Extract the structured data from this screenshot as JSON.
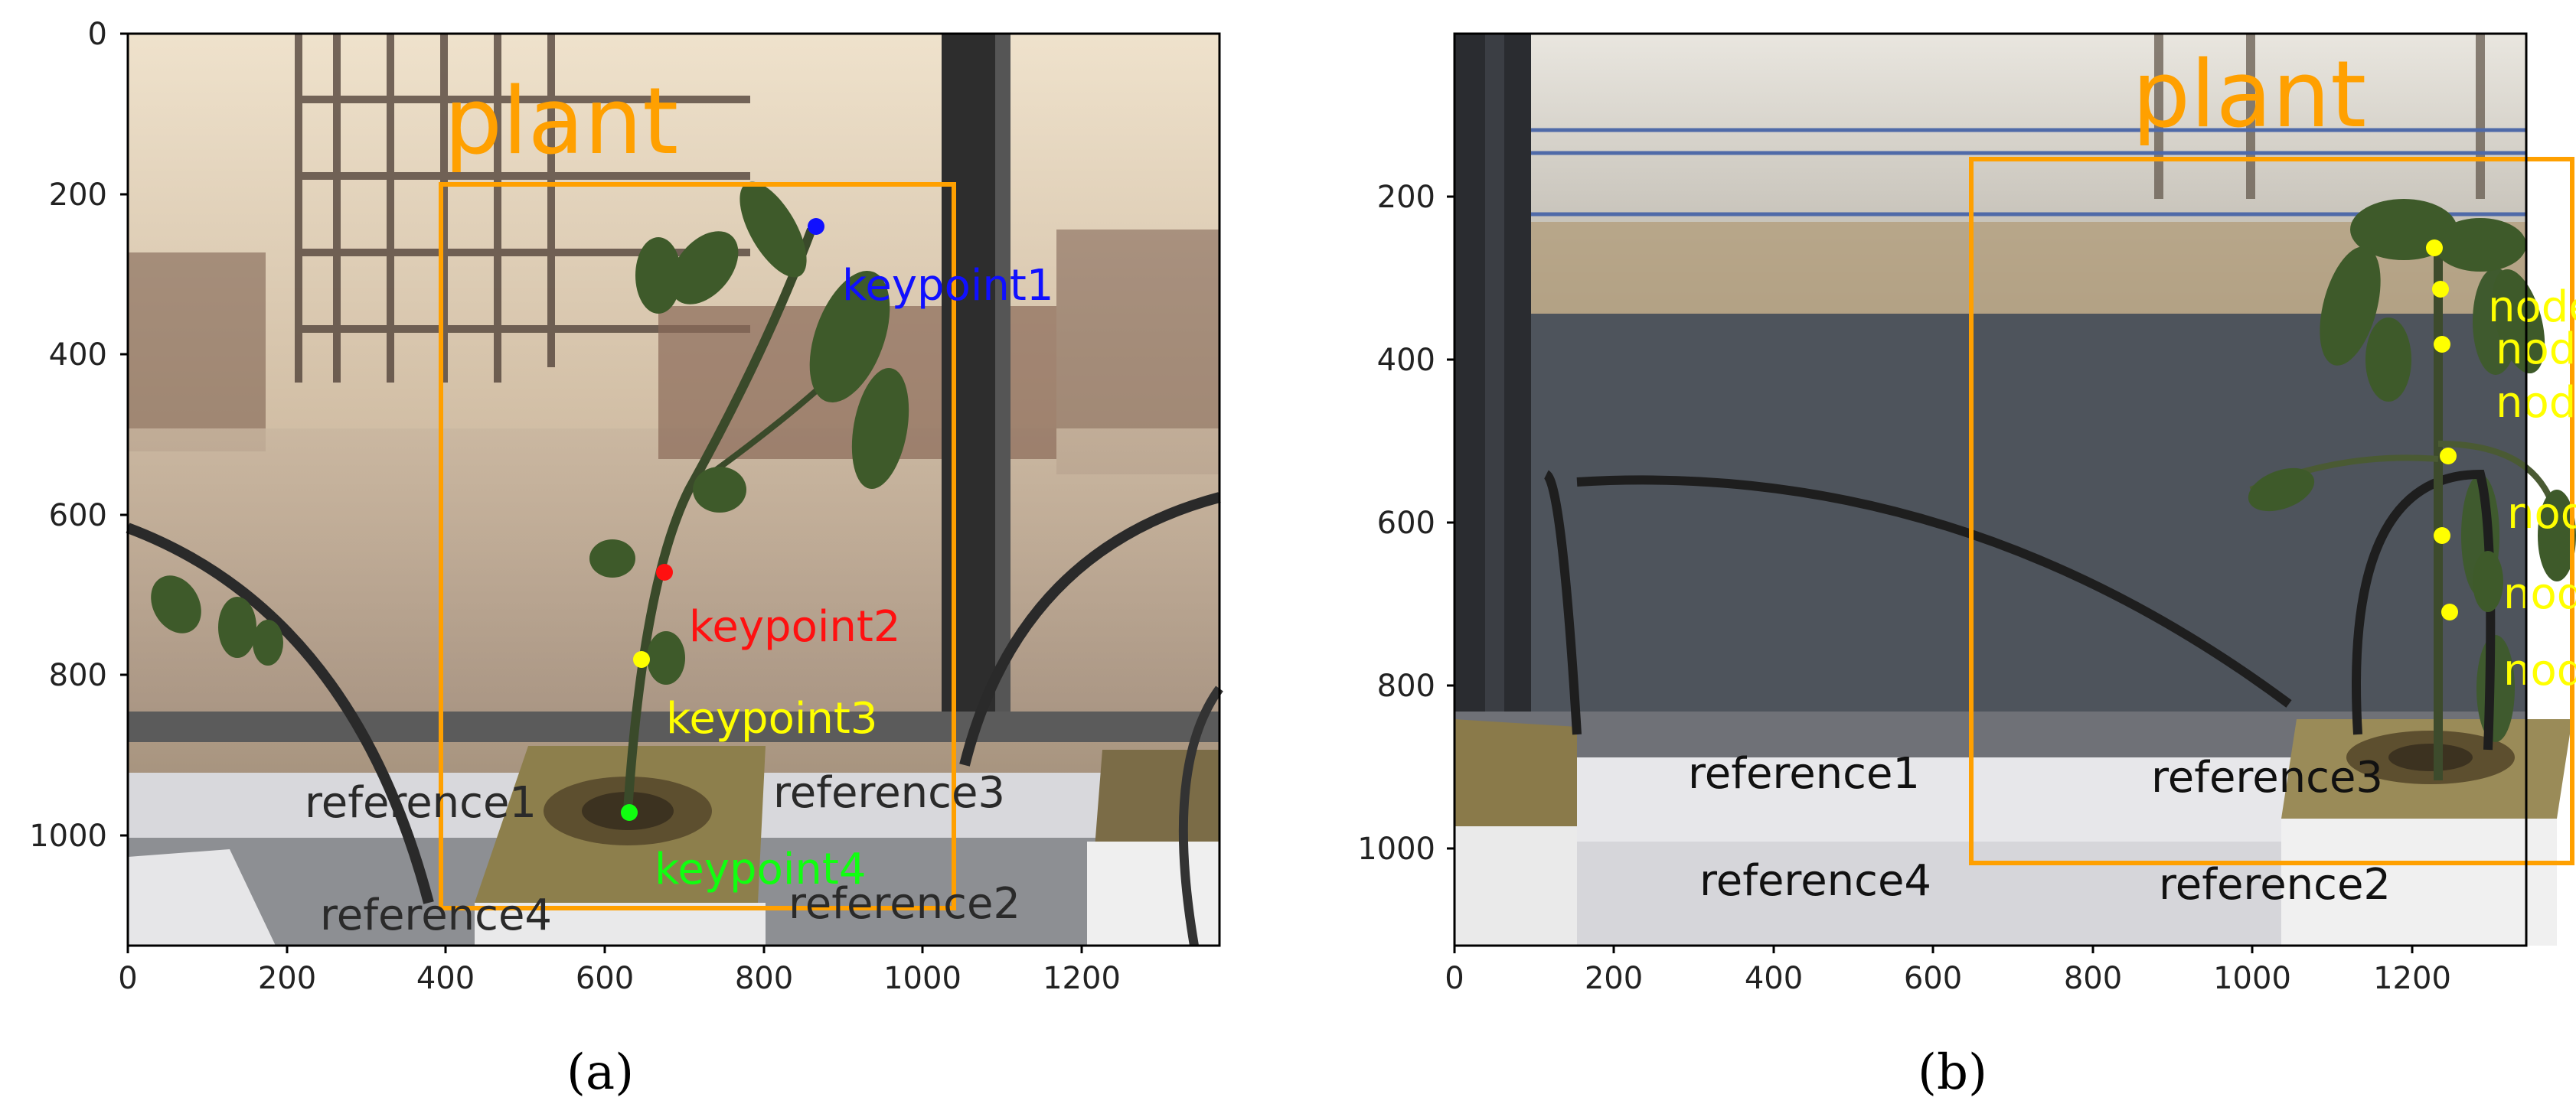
{
  "panels": [
    {
      "id": "a",
      "caption": "(a)",
      "class_label": "plant",
      "colors": {
        "box": "#ffa000",
        "kp1": "#1010ff",
        "kp2": "#ff1010",
        "kp3": "#ffff00",
        "kp4": "#10ff10",
        "ref": "#2a2a2a"
      },
      "x_ticks": [
        "0",
        "200",
        "400",
        "600",
        "800",
        "1000",
        "1200"
      ],
      "y_ticks": [
        "0",
        "200",
        "400",
        "600",
        "800",
        "1000"
      ],
      "labels": {
        "keypoint1": "keypoint1",
        "keypoint2": "keypoint2",
        "keypoint3": "keypoint3",
        "keypoint4": "keypoint4",
        "reference1": "reference1",
        "reference2": "reference2",
        "reference3": "reference3",
        "reference4": "reference4"
      }
    },
    {
      "id": "b",
      "caption": "(b)",
      "class_label": "plant",
      "colors": {
        "box": "#ffa000",
        "node": "#ffff00",
        "ref": "#111111"
      },
      "x_ticks": [
        "0",
        "200",
        "400",
        "600",
        "800",
        "1000",
        "1200"
      ],
      "y_ticks": [
        "200",
        "400",
        "600",
        "800",
        "1000"
      ],
      "node_label": "node",
      "labels": {
        "reference1": "reference1",
        "reference2": "reference2",
        "reference3": "reference3",
        "reference4": "reference4"
      }
    }
  ]
}
